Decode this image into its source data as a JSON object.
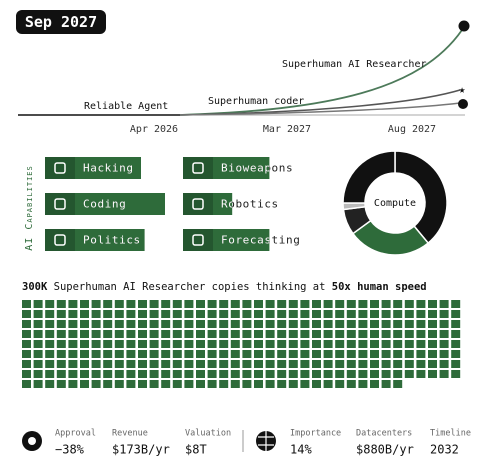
{
  "date": "Sep 2027",
  "timeline": {
    "milestones": [
      "Reliable Agent",
      "Superhuman coder",
      "Superhuman AI Researcher"
    ],
    "dates": [
      "Apr 2026",
      "Mar 2027",
      "Aug 2027"
    ]
  },
  "capabilities": {
    "title": "AI Capabilities",
    "items": [
      {
        "name": "Hacking",
        "level": 0.8
      },
      {
        "name": "Coding",
        "level": 1.0
      },
      {
        "name": "Politics",
        "level": 0.83
      },
      {
        "name": "Bioweapons",
        "level": 0.72
      },
      {
        "name": "Robotics",
        "level": 0.41
      },
      {
        "name": "Forecasting",
        "level": 0.72
      }
    ]
  },
  "compute": {
    "label": "Compute",
    "shares": [
      39,
      26,
      8,
      2,
      25
    ],
    "colors": [
      "#111111",
      "#2e6b3a",
      "#222222",
      "#bbbbbb",
      "#111111"
    ]
  },
  "headline": {
    "count": "300K",
    "text": " Superhuman AI Researcher copies thinking at ",
    "speed": "50x human speed"
  },
  "stats": [
    {
      "label": "Approval",
      "value": "−38%"
    },
    {
      "label": "Revenue",
      "value": "$173B/yr"
    },
    {
      "label": "Valuation",
      "value": "$8T"
    },
    {
      "label": "Importance",
      "value": "14%"
    },
    {
      "label": "Datacenters",
      "value": "$880B/yr"
    },
    {
      "label": "Timeline",
      "value": "2032"
    }
  ]
}
